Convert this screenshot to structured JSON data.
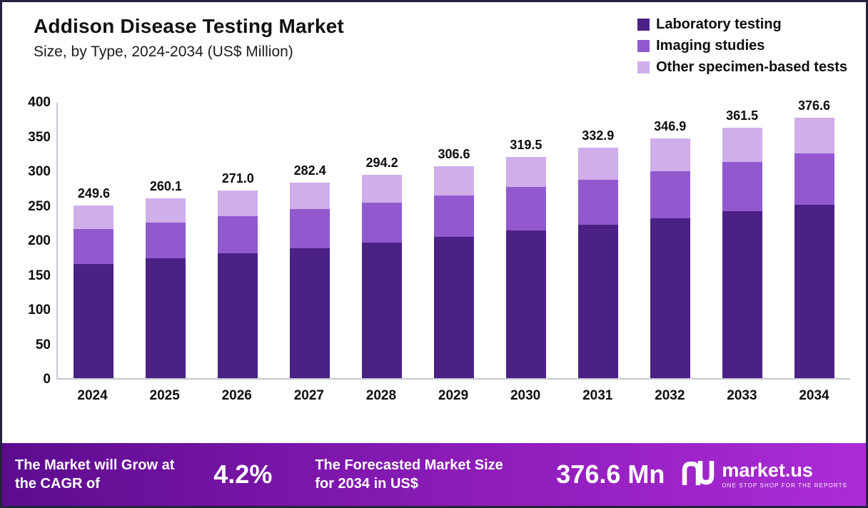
{
  "header": {
    "title": "Addison Disease Testing Market",
    "subtitle": "Size, by Type, 2024-2034 (US$ Million)"
  },
  "colors": {
    "laboratory": "#4b2183",
    "imaging": "#9259ce",
    "other": "#cfaeea",
    "banner_gradient_start": "#5c0c8e",
    "banner_gradient_end": "#ab2cd6",
    "frame_border": "#23233f"
  },
  "chart_data": {
    "type": "bar",
    "stacked": true,
    "title": "Addison Disease Testing Market",
    "subtitle": "Size, by Type, 2024-2034 (US$ Million)",
    "xlabel": "",
    "ylabel": "",
    "ylim": [
      0,
      400
    ],
    "yticks": [
      0,
      50,
      100,
      150,
      200,
      250,
      300,
      350,
      400
    ],
    "grid": false,
    "legend_position": "top-right",
    "categories": [
      "2024",
      "2025",
      "2026",
      "2027",
      "2028",
      "2029",
      "2030",
      "2031",
      "2032",
      "2033",
      "2034"
    ],
    "totals": [
      249.6,
      260.1,
      271.0,
      282.4,
      294.2,
      306.6,
      319.5,
      332.9,
      346.9,
      361.5,
      376.6
    ],
    "series": [
      {
        "name": "Laboratory testing",
        "color": "#4b2183",
        "values": [
          165,
          173,
          180,
          188,
          196,
          204,
          213,
          222,
          231,
          241,
          251
        ]
      },
      {
        "name": "Imaging studies",
        "color": "#9259ce",
        "values": [
          50,
          52,
          54,
          56,
          58,
          60,
          63,
          65,
          68,
          71,
          74
        ]
      },
      {
        "name": "Other specimen-based tests",
        "color": "#cfaeea",
        "values": [
          34.6,
          35.1,
          37.0,
          38.4,
          40.2,
          42.6,
          43.5,
          45.9,
          47.9,
          49.5,
          51.6
        ]
      }
    ]
  },
  "legend": [
    {
      "label": "Laboratory testing",
      "color": "#4b2183"
    },
    {
      "label": "Imaging studies",
      "color": "#9259ce"
    },
    {
      "label": "Other specimen-based tests",
      "color": "#cfaeea"
    }
  ],
  "footer": {
    "left_text": "The Market will Grow at the CAGR of",
    "cagr": "4.2%",
    "mid_text": "The Forecasted Market Size for 2034 in US$",
    "forecast": "376.6 Mn",
    "brand": "market.us",
    "tagline": "ONE STOP SHOP FOR THE REPORTS"
  }
}
